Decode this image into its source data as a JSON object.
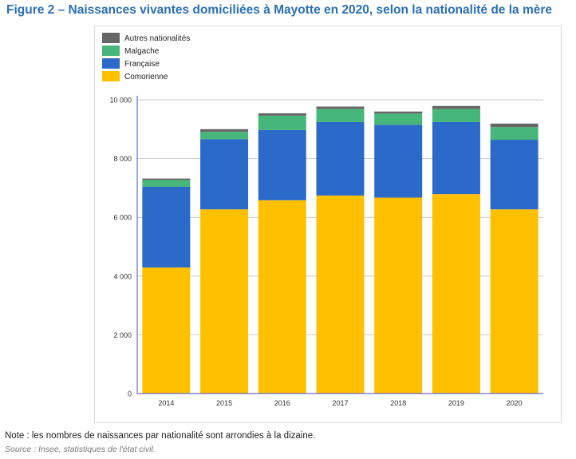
{
  "title": "Figure 2 – Naissances vivantes domiciliées à Mayotte en 2020, selon la nationalité de la mère",
  "note": "Note : les nombres de naissances par nationalité sont arrondies à la dizaine.",
  "source": "Source : Insee, statistiques de l'état civil.",
  "chart_data": {
    "type": "bar",
    "stacked": true,
    "categories": [
      "2014",
      "2015",
      "2016",
      "2017",
      "2018",
      "2019",
      "2020"
    ],
    "series": [
      {
        "name": "Comorienne",
        "color": "#ffc000",
        "values": [
          4290,
          6270,
          6580,
          6740,
          6670,
          6790,
          6270
        ]
      },
      {
        "name": "Française",
        "color": "#2b6ac9",
        "values": [
          2750,
          2390,
          2390,
          2500,
          2480,
          2450,
          2370
        ]
      },
      {
        "name": "Malgache",
        "color": "#47b67a",
        "values": [
          230,
          250,
          490,
          450,
          380,
          450,
          430
        ]
      },
      {
        "name": "Autres nationalités",
        "color": "#666666",
        "values": [
          50,
          90,
          80,
          80,
          70,
          100,
          120
        ]
      }
    ],
    "legend_order": [
      "Autres nationalités",
      "Malgache",
      "Française",
      "Comorienne"
    ],
    "ylim": [
      0,
      10000
    ],
    "yticks": [
      0,
      2000,
      4000,
      6000,
      8000,
      10000
    ],
    "ytick_labels": [
      "0",
      "2 000",
      "4 000",
      "6 000",
      "8 000",
      "10 000"
    ],
    "grid": "horizontal",
    "legend_position": "top-left"
  }
}
